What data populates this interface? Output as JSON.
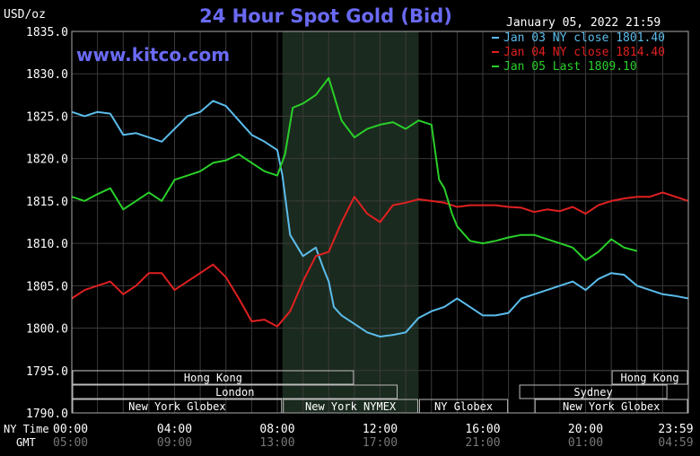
{
  "chart_data": {
    "type": "line",
    "title": "24 Hour Spot Gold (Bid)",
    "ylabel": "USD/oz",
    "site": "www.kitco.com",
    "timestamp": "January 05, 2022 21:59",
    "ylim": [
      1790,
      1835
    ],
    "yticks": [
      1835,
      1830,
      1825,
      1820,
      1815,
      1810,
      1805,
      1800,
      1795,
      1790
    ],
    "ytick_labels": [
      "1835.0",
      "1830.0",
      "1825.0",
      "1820.0",
      "1815.0",
      "1810.0",
      "1805.0",
      "1800.0",
      "1795.0",
      "1790.0"
    ],
    "xlim": [
      0,
      24
    ],
    "xticks": [
      0,
      4,
      8,
      12,
      16,
      20,
      24
    ],
    "xtick_labels_ny": [
      "00:00",
      "04:00",
      "08:00",
      "12:00",
      "16:00",
      "20:00",
      "23:59"
    ],
    "xtick_labels_gmt": [
      "05:00",
      "09:00",
      "13:00",
      "17:00",
      "21:00",
      "01:00",
      "04:59"
    ],
    "row_label_ny": "NY Time",
    "row_label_gmt": "GMT",
    "grid": true,
    "legend_position": "top-right",
    "highlight_range": [
      8.2,
      13.5
    ],
    "sessions": [
      {
        "name": "Hong Kong",
        "start": 0,
        "end": 11.0,
        "row": 0
      },
      {
        "name": "Hong Kong",
        "start": 21.0,
        "end": 24,
        "row": 0
      },
      {
        "name": "London",
        "start": 0,
        "end": 12.7,
        "row": 1
      },
      {
        "name": "Sydney",
        "start": 17.4,
        "end": 23.2,
        "row": 1
      },
      {
        "name": "New York Globex",
        "start": 0,
        "end": 8.2,
        "row": 2
      },
      {
        "name": "New York NYMEX",
        "start": 8.2,
        "end": 13.5,
        "row": 2
      },
      {
        "name": "NY Globex",
        "start": 13.5,
        "end": 17.0,
        "row": 2
      },
      {
        "name": "New York Globex",
        "start": 18.0,
        "end": 24,
        "row": 2
      }
    ],
    "series": [
      {
        "name": "Jan 03 NY close 1801.40",
        "color": "#5bbcec",
        "x": [
          0,
          0.5,
          1,
          1.5,
          2,
          2.5,
          3,
          3.5,
          4,
          4.5,
          5,
          5.5,
          6,
          6.5,
          7,
          7.5,
          8,
          8.2,
          8.5,
          9,
          9.5,
          9.8,
          10,
          10.2,
          10.5,
          11,
          11.5,
          12,
          12.5,
          13,
          13.5,
          14,
          14.5,
          15,
          15.5,
          16,
          16.5,
          17,
          17.5,
          18,
          18.5,
          19,
          19.5,
          20,
          20.5,
          21,
          21.5,
          22,
          22.5,
          23,
          23.5,
          24
        ],
        "values": [
          1825.5,
          1825.0,
          1825.5,
          1825.3,
          1822.8,
          1823.0,
          1822.5,
          1822.0,
          1823.5,
          1825.0,
          1825.5,
          1826.8,
          1826.2,
          1824.5,
          1822.8,
          1822.0,
          1821.0,
          1818.0,
          1811.0,
          1808.5,
          1809.5,
          1807.0,
          1805.5,
          1802.5,
          1801.5,
          1800.5,
          1799.5,
          1799.0,
          1799.2,
          1799.5,
          1801.2,
          1802.0,
          1802.5,
          1803.5,
          1802.5,
          1801.5,
          1801.5,
          1801.8,
          1803.5,
          1804.0,
          1804.5,
          1805.0,
          1805.5,
          1804.5,
          1805.8,
          1806.5,
          1806.3,
          1805.0,
          1804.5,
          1804.0,
          1803.8,
          1803.5
        ]
      },
      {
        "name": "Jan 04 NY close 1814.40",
        "color": "#e02020",
        "x": [
          0,
          0.5,
          1,
          1.5,
          2,
          2.5,
          3,
          3.5,
          4,
          4.5,
          5,
          5.5,
          6,
          6.5,
          7,
          7.5,
          8,
          8.5,
          9,
          9.5,
          10,
          10.5,
          11,
          11.5,
          12,
          12.5,
          13,
          13.5,
          14,
          14.5,
          15,
          15.5,
          16,
          16.5,
          17,
          17.5,
          18,
          18.5,
          19,
          19.5,
          20,
          20.5,
          21,
          21.5,
          22,
          22.5,
          23,
          23.5,
          24
        ],
        "values": [
          1803.5,
          1804.5,
          1805.0,
          1805.5,
          1804.0,
          1805.0,
          1806.5,
          1806.5,
          1804.5,
          1805.5,
          1806.5,
          1807.5,
          1806.0,
          1803.5,
          1800.8,
          1801.0,
          1800.2,
          1802.0,
          1805.5,
          1808.5,
          1809.0,
          1812.5,
          1815.5,
          1813.5,
          1812.5,
          1814.5,
          1814.8,
          1815.2,
          1815.0,
          1814.8,
          1814.3,
          1814.5,
          1814.5,
          1814.5,
          1814.3,
          1814.2,
          1813.7,
          1814.0,
          1813.8,
          1814.3,
          1813.5,
          1814.5,
          1815.0,
          1815.3,
          1815.5,
          1815.5,
          1816.0,
          1815.5,
          1815.0
        ]
      },
      {
        "name": "Jan 05 Last 1809.10",
        "color": "#29cf29",
        "x": [
          0,
          0.5,
          1,
          1.5,
          2,
          2.5,
          3,
          3.5,
          4,
          4.5,
          5,
          5.5,
          6,
          6.5,
          7,
          7.5,
          8,
          8.3,
          8.6,
          9,
          9.5,
          10,
          10.5,
          11,
          11.5,
          12,
          12.5,
          13,
          13.5,
          14,
          14.3,
          14.5,
          14.8,
          15,
          15.5,
          16,
          16.5,
          17,
          17.5,
          18,
          18.5,
          19,
          19.5,
          20,
          20.5,
          21,
          21.5,
          22
        ],
        "values": [
          1815.5,
          1815.0,
          1815.8,
          1816.5,
          1814.0,
          1815.0,
          1816.0,
          1815.0,
          1817.5,
          1818.0,
          1818.5,
          1819.5,
          1819.8,
          1820.5,
          1819.5,
          1818.5,
          1818.0,
          1820.5,
          1826.0,
          1826.5,
          1827.5,
          1829.5,
          1824.5,
          1822.5,
          1823.5,
          1824.0,
          1824.3,
          1823.5,
          1824.5,
          1824.0,
          1817.5,
          1816.5,
          1813.5,
          1812.0,
          1810.3,
          1810.0,
          1810.3,
          1810.7,
          1811.0,
          1811.0,
          1810.5,
          1810.0,
          1809.5,
          1808.0,
          1809.0,
          1810.5,
          1809.5,
          1809.1
        ]
      }
    ]
  }
}
